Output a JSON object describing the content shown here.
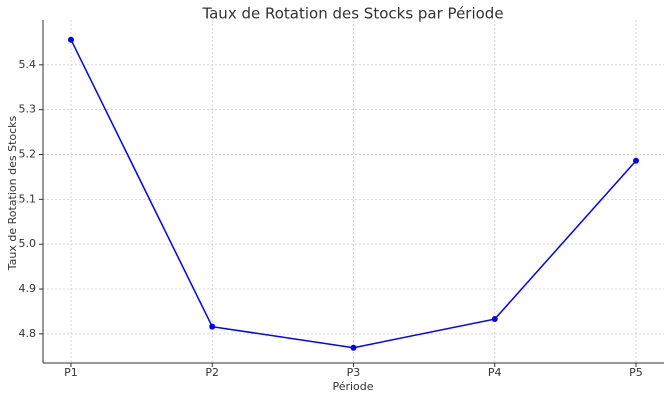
{
  "chart_data": {
    "type": "line",
    "title": "Taux de Rotation des Stocks par Période",
    "x_label": "Période",
    "y_label": "Taux de Rotation des Stocks",
    "categories": [
      "P1",
      "P2",
      "P3",
      "P4",
      "P5"
    ],
    "series": [
      {
        "name": "Taux de Rotation des Stocks",
        "color": "#0000ff",
        "values": [
          5.456,
          4.816,
          4.769,
          4.833,
          5.186
        ]
      }
    ],
    "ylim": [
      4.735,
      5.5
    ],
    "yticks": [
      4.8,
      4.9,
      {
        "value": 5,
        "label": "5.0"
      },
      5.1,
      5.2,
      5.3,
      5.4
    ],
    "grid": true
  }
}
